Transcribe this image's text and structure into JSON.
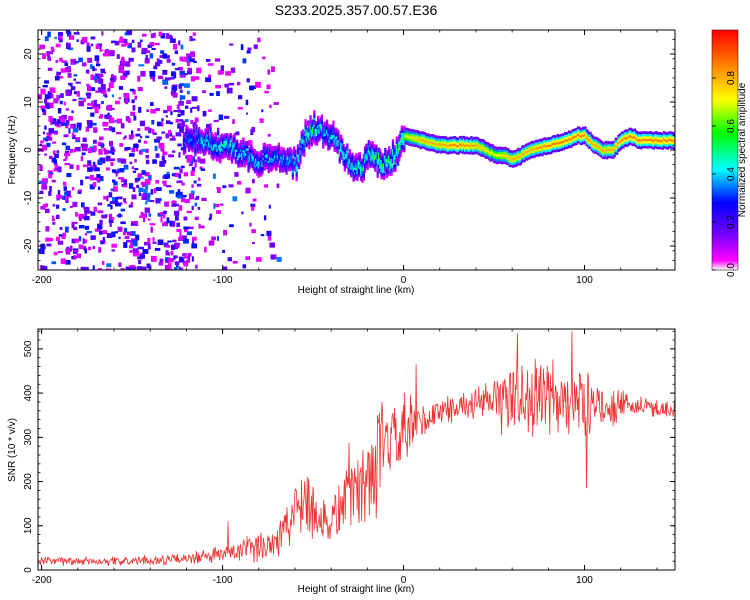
{
  "figure_title": "S233.2025.357.00.57.E36",
  "chart_data": [
    {
      "type": "heatmap",
      "title": "S233.2025.357.00.57.E36",
      "xlabel": "Height of straight line (km)",
      "ylabel": "Frequency (Hz)",
      "xlim": [
        -202,
        150
      ],
      "ylim": [
        -25,
        25
      ],
      "x_ticks": [
        -200,
        -100,
        0,
        100
      ],
      "y_ticks": [
        -20,
        -10,
        0,
        10,
        20
      ],
      "colorbar": {
        "label": "Normalized spectral amplitude",
        "range": [
          0,
          1
        ],
        "ticks": [
          0.0,
          0.2,
          0.4,
          0.6,
          0.8
        ],
        "colormap": [
          "#ffffff",
          "#ff00ff",
          "#8000ff",
          "#0000ff",
          "#00ffff",
          "#00ff00",
          "#ffff00",
          "#ff0000"
        ]
      },
      "ridge": {
        "x": [
          -120,
          -110,
          -100,
          -90,
          -80,
          -70,
          -60,
          -55,
          -50,
          -45,
          -40,
          -35,
          -30,
          -25,
          -20,
          -15,
          -10,
          -5,
          0,
          10,
          20,
          30,
          40,
          45,
          50,
          55,
          60,
          65,
          70,
          80,
          90,
          95,
          100,
          105,
          110,
          115,
          120,
          125,
          130,
          140,
          150
        ],
        "freq": [
          2,
          2,
          1,
          -1,
          -2,
          -2,
          -3,
          3,
          5,
          4,
          3,
          0,
          -3,
          -4,
          -1,
          -2,
          -3,
          -1,
          3,
          2,
          1,
          1,
          1,
          0,
          -1,
          -1,
          -2,
          -1,
          0,
          1,
          2,
          3,
          3,
          1,
          0,
          0,
          2,
          3,
          2,
          2,
          2
        ],
        "amplitude": [
          0.35,
          0.45,
          0.5,
          0.45,
          0.45,
          0.4,
          0.45,
          0.5,
          0.55,
          0.45,
          0.45,
          0.5,
          0.45,
          0.55,
          0.5,
          0.6,
          0.55,
          0.6,
          0.7,
          0.8,
          0.8,
          0.85,
          0.8,
          0.75,
          0.7,
          0.75,
          0.8,
          0.8,
          0.8,
          0.85,
          0.85,
          0.85,
          0.85,
          0.8,
          0.8,
          0.8,
          0.85,
          0.85,
          0.85,
          0.85,
          0.85
        ]
      },
      "noise_region": {
        "x_from": -202,
        "x_to": -115,
        "amplitude_range": [
          0.05,
          0.35
        ]
      }
    },
    {
      "type": "line",
      "xlabel": "Height of straight line (km)",
      "ylabel": "SNR (10 * v/v)",
      "xlim": [
        -202,
        150
      ],
      "ylim": [
        0,
        545
      ],
      "x_ticks": [
        -200,
        -100,
        0,
        100
      ],
      "y_ticks": [
        0,
        100,
        200,
        300,
        400,
        500
      ],
      "color": "#ee3333",
      "envelope": {
        "x": [
          -202,
          -150,
          -120,
          -100,
          -80,
          -70,
          -60,
          -55,
          -50,
          -45,
          -40,
          -35,
          -30,
          -25,
          -20,
          -15,
          -10,
          -5,
          0,
          5,
          10,
          20,
          30,
          40,
          50,
          60,
          70,
          80,
          90,
          100,
          110,
          120,
          130,
          140,
          150
        ],
        "mean": [
          20,
          20,
          25,
          35,
          50,
          70,
          130,
          180,
          140,
          110,
          110,
          140,
          200,
          170,
          220,
          230,
          280,
          290,
          300,
          320,
          330,
          360,
          370,
          375,
          380,
          390,
          390,
          385,
          380,
          375,
          370,
          370,
          370,
          365,
          365
        ],
        "spread": [
          12,
          12,
          15,
          25,
          40,
          55,
          90,
          100,
          90,
          80,
          80,
          90,
          110,
          110,
          130,
          140,
          110,
          110,
          110,
          90,
          60,
          40,
          35,
          40,
          70,
          110,
          110,
          110,
          110,
          90,
          60,
          40,
          30,
          25,
          25
        ]
      },
      "notable_peaks": [
        {
          "x": -97,
          "y": 110
        },
        {
          "x": -12,
          "y": 380
        },
        {
          "x": 7,
          "y": 465
        },
        {
          "x": 63,
          "y": 535
        },
        {
          "x": 93,
          "y": 540
        },
        {
          "x": 101,
          "y": 185
        }
      ]
    }
  ]
}
